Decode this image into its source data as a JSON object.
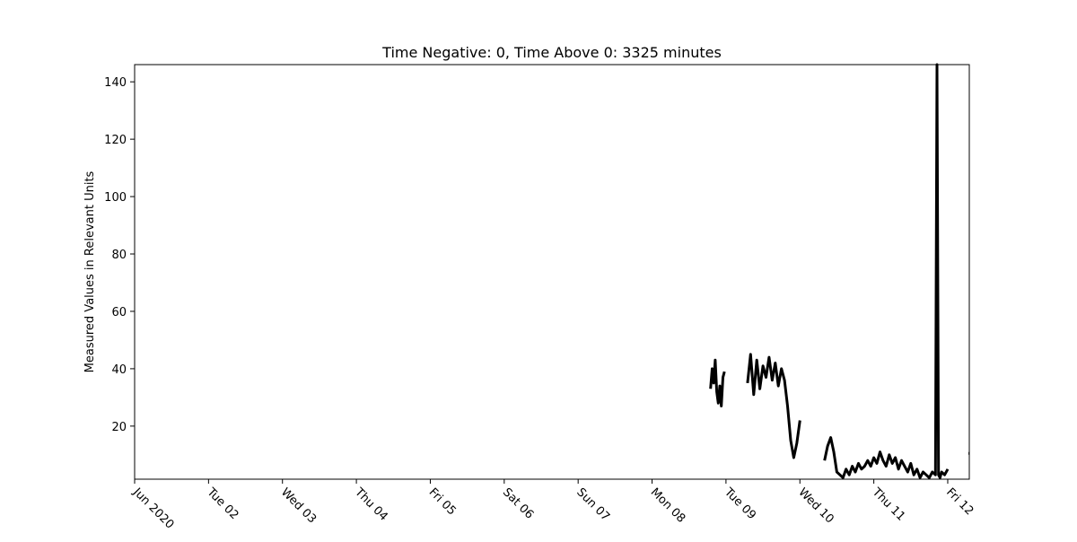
{
  "chart_data": {
    "type": "line",
    "title": "Time Negative: 0, Time Above 0: 3325 minutes",
    "xlabel": "",
    "ylabel": "Measured Values in Relevant Units",
    "xlim": [
      "2020-06-01",
      "2020-06-12 07:00"
    ],
    "ylim": [
      1.5,
      146
    ],
    "x_ticks": [
      "2020-06-01",
      "2020-06-02",
      "2020-06-03",
      "2020-06-04",
      "2020-06-05",
      "2020-06-06",
      "2020-06-07",
      "2020-06-08",
      "2020-06-09",
      "2020-06-10",
      "2020-06-11",
      "2020-06-12"
    ],
    "x_tick_labels": [
      "Jun 2020",
      "Tue 02",
      "Wed 03",
      "Thu 04",
      "Fri 05",
      "Sat 06",
      "Sun 07",
      "Mon 08",
      "Tue 09",
      "Wed 10",
      "Thu 11",
      "Fri 12"
    ],
    "y_ticks": [
      20,
      40,
      60,
      80,
      100,
      120,
      140
    ],
    "y_tick_labels": [
      "20",
      "40",
      "60",
      "80",
      "100",
      "120",
      "140"
    ],
    "grid": false,
    "line_color": "#000000",
    "series": [
      {
        "segments": [
          {
            "x": [
              "2020-06-08 19:00",
              "2020-06-08 19:30",
              "2020-06-08 20:00",
              "2020-06-08 20:30",
              "2020-06-08 21:00",
              "2020-06-08 21:30",
              "2020-06-08 22:00",
              "2020-06-08 22:30",
              "2020-06-08 23:00",
              "2020-06-08 23:30"
            ],
            "y": [
              33,
              40,
              35,
              43,
              32,
              28,
              34,
              27,
              37,
              39
            ]
          },
          {
            "x": [
              "2020-06-09 07:00",
              "2020-06-09 08:00",
              "2020-06-09 09:00",
              "2020-06-09 10:00",
              "2020-06-09 11:00",
              "2020-06-09 12:00",
              "2020-06-09 13:00",
              "2020-06-09 14:00",
              "2020-06-09 15:00",
              "2020-06-09 16:00",
              "2020-06-09 17:00",
              "2020-06-09 18:00",
              "2020-06-09 19:00",
              "2020-06-09 20:00",
              "2020-06-09 21:00",
              "2020-06-09 22:00",
              "2020-06-09 23:00",
              "2020-06-10 00:00"
            ],
            "y": [
              35,
              45,
              31,
              43,
              33,
              41,
              37,
              44,
              36,
              42,
              34,
              40,
              36,
              27,
              15,
              9,
              14,
              22
            ]
          },
          {
            "x": [
              "2020-06-10 08:00",
              "2020-06-10 09:00",
              "2020-06-10 10:00",
              "2020-06-10 11:00",
              "2020-06-10 12:00",
              "2020-06-10 13:00",
              "2020-06-10 14:00",
              "2020-06-10 15:00",
              "2020-06-10 16:00",
              "2020-06-10 17:00",
              "2020-06-10 18:00",
              "2020-06-10 19:00",
              "2020-06-10 20:00",
              "2020-06-10 21:00",
              "2020-06-10 22:00",
              "2020-06-10 23:00",
              "2020-06-11 00:00",
              "2020-06-11 01:00",
              "2020-06-11 02:00",
              "2020-06-11 03:00",
              "2020-06-11 04:00",
              "2020-06-11 05:00",
              "2020-06-11 06:00",
              "2020-06-11 07:00",
              "2020-06-11 08:00",
              "2020-06-11 09:00",
              "2020-06-11 10:00",
              "2020-06-11 11:00",
              "2020-06-11 12:00",
              "2020-06-11 13:00",
              "2020-06-11 14:00",
              "2020-06-11 15:00",
              "2020-06-11 16:00",
              "2020-06-11 17:00",
              "2020-06-11 18:00",
              "2020-06-11 19:00",
              "2020-06-11 20:00",
              "2020-06-11 20:30",
              "2020-06-11 21:00",
              "2020-06-11 21:30",
              "2020-06-11 22:00",
              "2020-06-11 23:00",
              "2020-06-12 00:00"
            ],
            "y": [
              8,
              13,
              16,
              11,
              4,
              3,
              2,
              5,
              3,
              6,
              4,
              7,
              5,
              6,
              8,
              6,
              9,
              7,
              11,
              8,
              6,
              10,
              7,
              9,
              5,
              8,
              6,
              4,
              7,
              3,
              5,
              2,
              4,
              3,
              2,
              4,
              3,
              146,
              3,
              2,
              4,
              3,
              5
            ]
          },
          {
            "x": [
              "2020-06-12 06:45",
              "2020-06-12 07:00"
            ],
            "y": [
              10.5,
              10.5
            ]
          }
        ]
      }
    ]
  }
}
